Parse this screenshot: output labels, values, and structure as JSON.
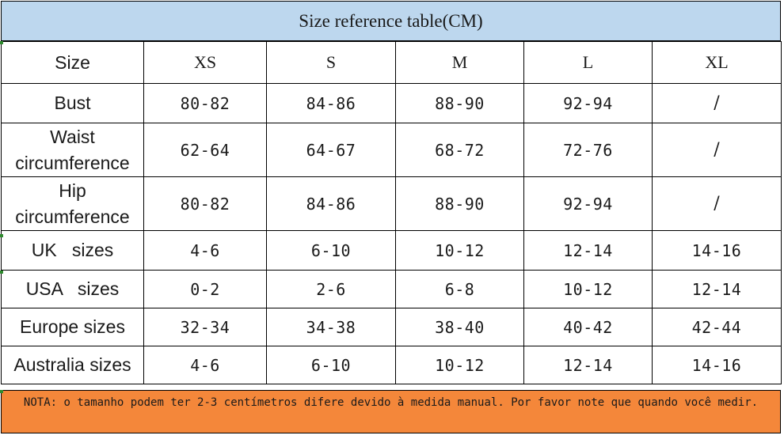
{
  "title": "Size reference table(CM)",
  "header": [
    "Size",
    "XS",
    "S",
    "M",
    "L",
    "XL"
  ],
  "rows": [
    {
      "label": "Bust",
      "values": [
        "80-82",
        "84-86",
        "88-90",
        "92-94",
        "/"
      ]
    },
    {
      "label_line1": "Waist",
      "label_line2": "circumference",
      "values": [
        "62-64",
        "64-67",
        "68-72",
        "72-76",
        "/"
      ]
    },
    {
      "label_line1": "Hip",
      "label_line2": "circumference",
      "values": [
        "80-82",
        "84-86",
        "88-90",
        "92-94",
        "/"
      ]
    },
    {
      "label": "UK   sizes",
      "values": [
        "4-6",
        "6-10",
        "10-12",
        "12-14",
        "14-16"
      ]
    },
    {
      "label": "USA   sizes",
      "values": [
        "0-2",
        "2-6",
        "6-8",
        "10-12",
        "12-14"
      ]
    },
    {
      "label": "Europe sizes",
      "values": [
        "32-34",
        "34-38",
        "38-40",
        "40-42",
        "42-44"
      ]
    },
    {
      "label": "Australia sizes",
      "values": [
        "4-6",
        "6-10",
        "10-12",
        "12-14",
        "14-16"
      ]
    }
  ],
  "note": "NOTA: o tamanho podem ter 2-3 centímetros difere devido à medida manual. Por favor note que quando você medir."
}
